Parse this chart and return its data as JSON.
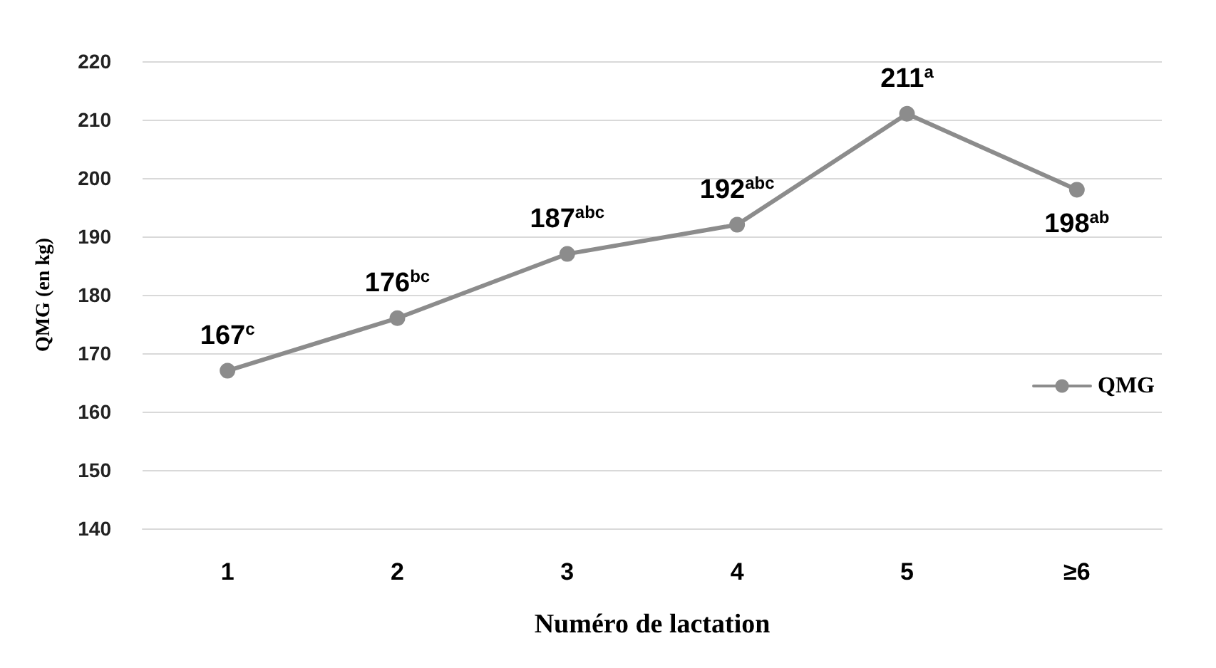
{
  "chart_data": {
    "type": "line",
    "xlabel": "Numéro de lactation",
    "ylabel": "QMG (en kg)",
    "categories": [
      "1",
      "2",
      "3",
      "4",
      "5",
      "≥6"
    ],
    "series": [
      {
        "name": "QMG",
        "color": "#8c8c8c",
        "values": [
          167,
          176,
          187,
          192,
          211,
          198
        ],
        "value_labels": [
          "167$^{c}$",
          "176$^{bc}$",
          "187$^{abc}$",
          "192$^{abc}$",
          "211$^{a}$",
          "198$^{ab}$"
        ]
      }
    ],
    "ylim": [
      140,
      220
    ],
    "yticks": [
      140,
      150,
      160,
      170,
      180,
      190,
      200,
      210,
      220
    ],
    "grid": "y",
    "legend": "right",
    "marker": "circle",
    "line_style": "solid"
  }
}
